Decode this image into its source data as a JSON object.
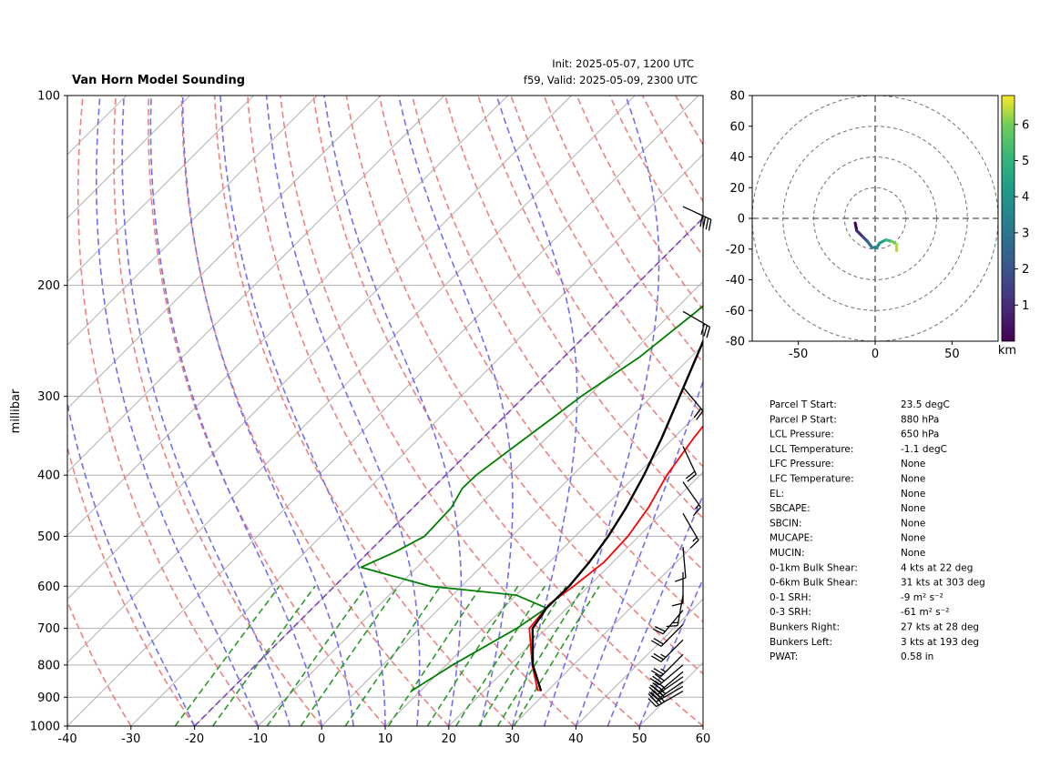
{
  "header": {
    "title": "Van Horn Model Sounding",
    "init": "Init: 2025-05-07, 1200 UTC",
    "valid": "f59, Valid: 2025-05-09, 2300 UTC"
  },
  "chart_data": [
    {
      "type": "line",
      "kind": "skew-t log-p",
      "ylabel": "millibar",
      "xlim": [
        -40,
        60
      ],
      "ylim": [
        1000,
        100
      ],
      "y_scale": "log",
      "x_ticks": [
        -40,
        -30,
        -20,
        -10,
        0,
        10,
        20,
        30,
        40,
        50,
        60
      ],
      "y_ticks": [
        1000,
        900,
        800,
        700,
        600,
        500,
        400,
        300,
        200,
        100
      ],
      "series": [
        {
          "role": "temperature",
          "color": "#ff0000",
          "points": [
            [
              880,
              28.5
            ],
            [
              800,
              23.5
            ],
            [
              700,
              17.3
            ],
            [
              640,
              16.6
            ],
            [
              600,
              17.6
            ],
            [
              550,
              18.6
            ],
            [
              500,
              18.3
            ],
            [
              450,
              17.0
            ],
            [
              400,
              14.8
            ],
            [
              350,
              13.2
            ],
            [
              300,
              11.8
            ],
            [
              250,
              11.3
            ],
            [
              220,
              12.6
            ],
            [
              200,
              15.4
            ],
            [
              160,
              21.0
            ],
            [
              130,
              26.5
            ],
            [
              110,
              31.0
            ],
            [
              100,
              34.0
            ]
          ]
        },
        {
          "role": "dewpoint",
          "color": "#008000",
          "points": [
            [
              880,
              8.6
            ],
            [
              800,
              11.0
            ],
            [
              700,
              15.3
            ],
            [
              650,
              16.8
            ],
            [
              620,
              10.0
            ],
            [
              600,
              -5.0
            ],
            [
              560,
              -18.8
            ],
            [
              530,
              -15.9
            ],
            [
              500,
              -13.7
            ],
            [
              450,
              -14.0
            ],
            [
              420,
              -15.3
            ],
            [
              400,
              -15.2
            ],
            [
              360,
              -13.7
            ],
            [
              320,
              -12.0
            ],
            [
              300,
              -11.1
            ],
            [
              260,
              -8.1
            ],
            [
              220,
              -6.3
            ],
            [
              180,
              -5.0
            ],
            [
              150,
              -3.6
            ],
            [
              130,
              1.0
            ],
            [
              110,
              4.8
            ],
            [
              100,
              6.9
            ]
          ]
        },
        {
          "role": "parcel",
          "color": "#000000",
          "points": [
            [
              880,
              29.0
            ],
            [
              800,
              23.6
            ],
            [
              700,
              17.8
            ],
            [
              650,
              16.8
            ],
            [
              600,
              16.9
            ],
            [
              550,
              16.3
            ],
            [
              500,
              15.2
            ],
            [
              450,
              13.5
            ],
            [
              400,
              11.2
            ],
            [
              350,
              8.2
            ],
            [
              300,
              4.4
            ],
            [
              250,
              -0.1
            ],
            [
              200,
              -5.8
            ],
            [
              160,
              -9.8
            ],
            [
              130,
              -12.8
            ],
            [
              110,
              -14.9
            ],
            [
              100,
              -16.5
            ]
          ]
        }
      ],
      "wind_barbs": [
        {
          "p": 880,
          "dir": 240,
          "spd": 35
        },
        {
          "p": 865,
          "dir": 240,
          "spd": 35
        },
        {
          "p": 850,
          "dir": 235,
          "spd": 35
        },
        {
          "p": 835,
          "dir": 235,
          "spd": 35
        },
        {
          "p": 820,
          "dir": 230,
          "spd": 30
        },
        {
          "p": 800,
          "dir": 230,
          "spd": 30
        },
        {
          "p": 770,
          "dir": 225,
          "spd": 25
        },
        {
          "p": 730,
          "dir": 225,
          "spd": 25
        },
        {
          "p": 690,
          "dir": 225,
          "spd": 20
        },
        {
          "p": 655,
          "dir": 220,
          "spd": 20
        },
        {
          "p": 620,
          "dir": 190,
          "spd": 15
        },
        {
          "p": 570,
          "dir": 180,
          "spd": 10
        },
        {
          "p": 520,
          "dir": 175,
          "spd": 10
        },
        {
          "p": 460,
          "dir": 150,
          "spd": 15
        },
        {
          "p": 410,
          "dir": 145,
          "spd": 15
        },
        {
          "p": 360,
          "dir": 155,
          "spd": 20
        },
        {
          "p": 290,
          "dir": 140,
          "spd": 20
        },
        {
          "p": 220,
          "dir": 120,
          "spd": 30
        },
        {
          "p": 150,
          "dir": 115,
          "spd": 40
        }
      ]
    },
    {
      "type": "line",
      "kind": "hodograph",
      "xlim": [
        -80,
        80
      ],
      "ylim": [
        -80,
        80
      ],
      "x_ticks": [
        -50,
        0,
        50
      ],
      "y_ticks": [
        -80,
        -60,
        -40,
        -20,
        0,
        20,
        40,
        60,
        80
      ],
      "rings": [
        20,
        40,
        60,
        80
      ],
      "colorbar": {
        "label": "km",
        "range": [
          0,
          6.8
        ],
        "ticks": [
          1,
          2,
          3,
          4,
          5,
          6
        ]
      },
      "points": [
        [
          -13,
          -3,
          0.2
        ],
        [
          -12,
          -8,
          0.8
        ],
        [
          -8,
          -12,
          1.4
        ],
        [
          -5,
          -15,
          2.0
        ],
        [
          -2,
          -19,
          2.6
        ],
        [
          1,
          -19,
          3.0
        ],
        [
          3,
          -16,
          3.4
        ],
        [
          7,
          -14,
          4.0
        ],
        [
          11,
          -15,
          4.8
        ],
        [
          14,
          -17,
          5.6
        ],
        [
          14,
          -21,
          6.4
        ]
      ]
    }
  ],
  "parameters": [
    {
      "label": "Parcel T Start:",
      "value": "23.5 degC"
    },
    {
      "label": "Parcel P Start:",
      "value": "880 hPa"
    },
    {
      "label": "LCL Pressure:",
      "value": "650 hPa"
    },
    {
      "label": "LCL Temperature:",
      "value": "-1.1 degC"
    },
    {
      "label": "LFC Pressure:",
      "value": "None"
    },
    {
      "label": "LFC Temperature:",
      "value": "None"
    },
    {
      "label": "EL:",
      "value": "None"
    },
    {
      "label": "SBCAPE:",
      "value": "None"
    },
    {
      "label": "SBCIN:",
      "value": "None"
    },
    {
      "label": "MUCAPE:",
      "value": "None"
    },
    {
      "label": "MUCIN:",
      "value": "None"
    },
    {
      "label": "0-1km Bulk Shear:",
      "value": "4 kts at 22 deg"
    },
    {
      "label": "0-6km Bulk Shear:",
      "value": "31 kts at 303 deg"
    },
    {
      "label": "0-1 SRH:",
      "value": "-9 m² s⁻²"
    },
    {
      "label": "0-3 SRH:",
      "value": "-61 m² s⁻²"
    },
    {
      "label": "Bunkers Right:",
      "value": "27 kts at 28 deg"
    },
    {
      "label": "Bunkers Left:",
      "value": "3 kts at 193 deg"
    },
    {
      "label": "PWAT:",
      "value": "0.58 in"
    }
  ],
  "colors": {
    "temperature": "#ff0000",
    "dewpoint": "#008000",
    "parcel": "#000000",
    "dry_adiabat": "#f08080",
    "moist_adiabat": "#7070f0",
    "mixing_ratio": "#2a9a2a",
    "isotherm_minus20": "#8040c0"
  }
}
